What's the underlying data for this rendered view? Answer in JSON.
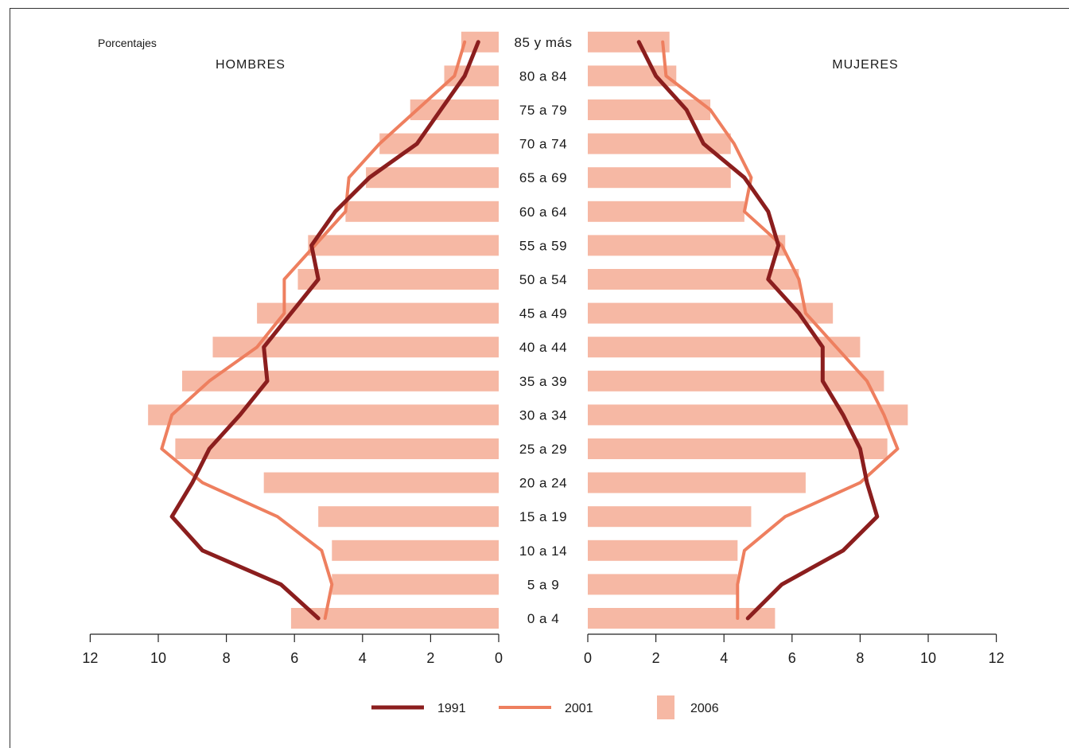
{
  "chart_data": {
    "type": "population-pyramid",
    "unit_label": "Porcentajes",
    "left_title": "HOMBRES",
    "right_title": "MUJERES",
    "categories": [
      "0 a 4",
      "5 a 9",
      "10 a 14",
      "15 a 19",
      "20 a 24",
      "25 a 29",
      "30 a 34",
      "35 a 39",
      "40 a 44",
      "45 a 49",
      "50 a 54",
      "55 a 59",
      "60 a 64",
      "65 a 69",
      "70 a 74",
      "75 a 79",
      "80 a 84",
      "85 y más"
    ],
    "xlim": [
      0,
      12
    ],
    "xticks": [
      "0",
      "2",
      "4",
      "6",
      "8",
      "10",
      "12"
    ],
    "series": [
      {
        "name": "1991",
        "type": "line",
        "color": "#8b1e1e",
        "hombres": [
          5.3,
          6.4,
          8.7,
          9.6,
          9.0,
          8.5,
          7.6,
          6.8,
          6.9,
          6.1,
          5.3,
          5.5,
          4.8,
          3.8,
          2.4,
          1.7,
          1.0,
          0.6
        ],
        "mujeres": [
          4.7,
          5.7,
          7.5,
          8.5,
          8.2,
          8.0,
          7.5,
          6.9,
          6.9,
          6.2,
          5.3,
          5.6,
          5.3,
          4.6,
          3.4,
          2.9,
          2.0,
          1.5
        ]
      },
      {
        "name": "2001",
        "type": "line",
        "color": "#ee7f5f",
        "hombres": [
          5.1,
          4.9,
          5.2,
          6.5,
          8.7,
          9.9,
          9.6,
          8.5,
          7.1,
          6.3,
          6.3,
          5.4,
          4.5,
          4.4,
          3.5,
          2.4,
          1.3,
          1.0
        ],
        "mujeres": [
          4.4,
          4.4,
          4.6,
          5.8,
          8.0,
          9.1,
          8.7,
          8.2,
          7.3,
          6.4,
          6.2,
          5.7,
          4.6,
          4.8,
          4.3,
          3.6,
          2.3,
          2.2
        ]
      },
      {
        "name": "2006",
        "type": "bar",
        "color": "#f6b8a4",
        "hombres": [
          6.1,
          4.9,
          4.9,
          5.3,
          6.9,
          9.5,
          10.3,
          9.3,
          8.4,
          7.1,
          5.9,
          5.6,
          4.5,
          3.9,
          3.5,
          2.6,
          1.6,
          1.1
        ],
        "mujeres": [
          5.5,
          4.4,
          4.4,
          4.8,
          6.4,
          8.8,
          9.4,
          8.7,
          8.0,
          7.2,
          6.2,
          5.8,
          4.6,
          4.2,
          4.2,
          3.6,
          2.6,
          2.4
        ]
      }
    ]
  }
}
